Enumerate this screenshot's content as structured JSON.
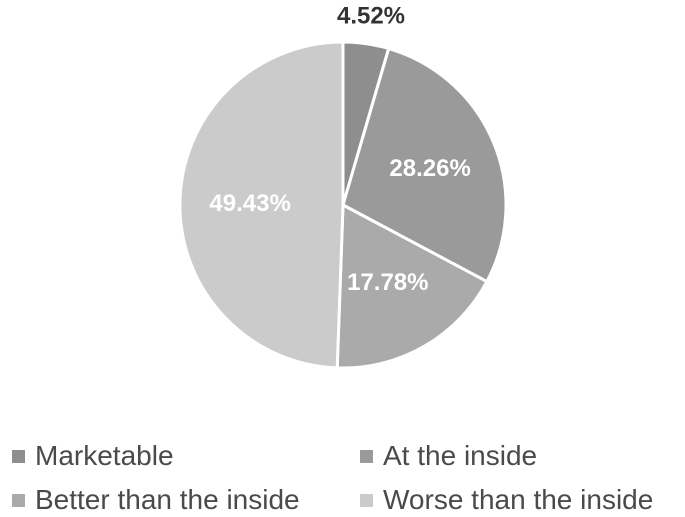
{
  "chart_data": {
    "type": "pie",
    "title": "",
    "categories": [
      "Marketable",
      "At the inside",
      "Better than the inside",
      "Worse than the inside"
    ],
    "values": [
      4.52,
      28.26,
      17.78,
      49.43
    ],
    "data_labels": [
      "4.52%",
      "28.26%",
      "17.78%",
      "49.43%"
    ],
    "colors": [
      "#8e8e8e",
      "#9a9a9a",
      "#aaaaaa",
      "#cbcbcb"
    ],
    "label_colors": [
      "#333333",
      "#ffffff",
      "#ffffff",
      "#ffffff"
    ],
    "legend_position": "bottom"
  }
}
